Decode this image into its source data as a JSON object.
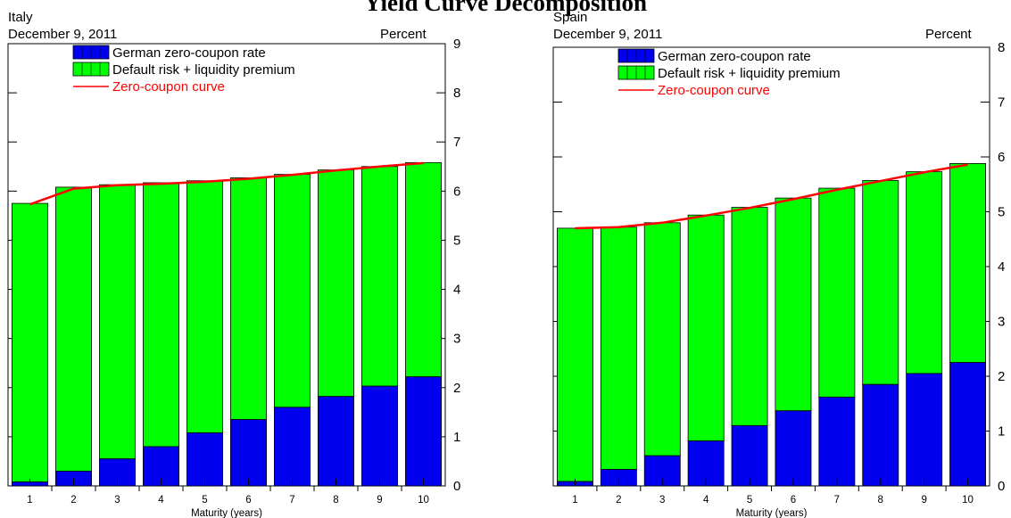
{
  "title": "Yield Curve Decomposition",
  "legend_labels": [
    "German zero-coupon rate",
    "Default risk + liquidity premium",
    "Zero-coupon curve"
  ],
  "colors": {
    "german": "#0000ee",
    "premium": "#00ff00",
    "curve": "#ff0000",
    "axis": "#000000"
  },
  "chart_data": [
    {
      "type": "bar",
      "panel_title": "Italy",
      "subtitle": "December 9, 2011",
      "units": "Percent",
      "xlabel": "Maturity (years)",
      "categories": [
        "1",
        "2",
        "3",
        "4",
        "5",
        "6",
        "7",
        "8",
        "9",
        "10"
      ],
      "ylim": [
        0,
        9
      ],
      "yticks": [
        "0",
        "1",
        "2",
        "3",
        "4",
        "5",
        "6",
        "7",
        "8",
        "9"
      ],
      "stacked": true,
      "series": [
        {
          "name": "German zero-coupon rate",
          "values": [
            0.08,
            0.3,
            0.55,
            0.8,
            1.08,
            1.35,
            1.6,
            1.82,
            2.03,
            2.22
          ]
        },
        {
          "name": "Default risk + liquidity premium",
          "values": [
            5.67,
            5.78,
            5.58,
            5.37,
            5.13,
            4.92,
            4.74,
            4.61,
            4.47,
            4.36
          ]
        }
      ],
      "line": {
        "name": "Zero-coupon curve",
        "values": [
          5.73,
          6.05,
          6.12,
          6.15,
          6.19,
          6.25,
          6.33,
          6.42,
          6.5,
          6.57
        ]
      }
    },
    {
      "type": "bar",
      "panel_title": "Spain",
      "subtitle": "December 9, 2011",
      "units": "Percent",
      "xlabel": "Maturity (years)",
      "categories": [
        "1",
        "2",
        "3",
        "4",
        "5",
        "6",
        "7",
        "8",
        "9",
        "10"
      ],
      "ylim": [
        0,
        8
      ],
      "yticks": [
        "0",
        "1",
        "2",
        "3",
        "4",
        "5",
        "6",
        "7",
        "8"
      ],
      "stacked": true,
      "series": [
        {
          "name": "German zero-coupon rate",
          "values": [
            0.08,
            0.3,
            0.55,
            0.82,
            1.1,
            1.37,
            1.62,
            1.85,
            2.05,
            2.25
          ]
        },
        {
          "name": "Default risk + liquidity premium",
          "values": [
            4.62,
            4.42,
            4.25,
            4.12,
            3.98,
            3.88,
            3.81,
            3.72,
            3.68,
            3.63
          ]
        }
      ],
      "line": {
        "name": "Zero-coupon curve",
        "values": [
          4.7,
          4.72,
          4.8,
          4.93,
          5.07,
          5.23,
          5.4,
          5.56,
          5.72,
          5.86
        ]
      }
    }
  ]
}
